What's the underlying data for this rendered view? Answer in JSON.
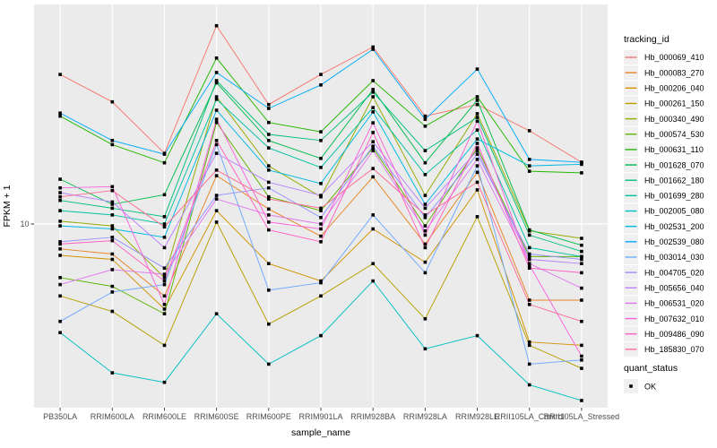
{
  "chart_data": {
    "type": "line",
    "title": "",
    "xlabel": "sample_name",
    "ylabel": "FPKM + 1",
    "y_scale": "log10",
    "ylim": [
      1.45,
      100
    ],
    "y_ticks": [
      10
    ],
    "y_tick_labels": [
      "10"
    ],
    "grid": "major-white-on-gray",
    "legend_position": "right",
    "point_shape": "filled-square",
    "point_color": "#000000",
    "categories": [
      "PB350LA",
      "RRIM600LA",
      "RRIM600LE",
      "RRIM600SE",
      "RRIM600PE",
      "RRIM901LA",
      "RRIM928BA",
      "RRIM928LA",
      "RRIM928LE",
      "RRII105LA_Control",
      "RRII105LA_Stressed"
    ],
    "series": [
      {
        "name": "Hb_000069_410",
        "color": "#F8766D",
        "values": [
          48,
          36,
          21,
          80,
          35,
          48,
          64,
          31,
          35,
          26.6,
          19.1
        ]
      },
      {
        "name": "Hb_000083_270",
        "color": "#E88526",
        "values": [
          7.7,
          7.3,
          4.7,
          16.6,
          11.7,
          8.8,
          16.4,
          8.1,
          17.2,
          4.5,
          4.5
        ]
      },
      {
        "name": "Hb_000206_040",
        "color": "#D39200",
        "values": [
          7.2,
          6.9,
          4.1,
          11.5,
          6.6,
          5.5,
          9.5,
          6.7,
          14.3,
          2.9,
          2.8
        ]
      },
      {
        "name": "Hb_000261_150",
        "color": "#B79F00",
        "values": [
          4.7,
          4.0,
          2.8,
          10.2,
          3.5,
          4.7,
          6.6,
          3.7,
          10.8,
          2.8,
          2.2
        ]
      },
      {
        "name": "Hb_000340_490",
        "color": "#93AA00",
        "values": [
          10.3,
          9.8,
          5.7,
          38,
          18.4,
          13.3,
          38,
          13.5,
          31.8,
          9.3,
          8.6
        ]
      },
      {
        "name": "Hb_000574_530",
        "color": "#5EB300",
        "values": [
          5.7,
          5.2,
          3.9,
          29,
          13.3,
          11.5,
          22.2,
          9.8,
          22.2,
          7.1,
          7.1
        ]
      },
      {
        "name": "Hb_000631_110",
        "color": "#24B700",
        "values": [
          31,
          23,
          19,
          57,
          29,
          26.3,
          45,
          27.9,
          38,
          17.4,
          17.1
        ]
      },
      {
        "name": "Hb_001628_070",
        "color": "#00BB4E",
        "values": [
          16,
          12.3,
          13.6,
          44,
          24,
          19.9,
          41,
          19,
          36.6,
          9.4,
          8.0
        ]
      },
      {
        "name": "Hb_001662_180",
        "color": "#00C079",
        "values": [
          12.8,
          11.8,
          10.8,
          45,
          25.6,
          24,
          39.9,
          21.6,
          30.6,
          8.9,
          7.5
        ]
      },
      {
        "name": "Hb_001699_280",
        "color": "#00C1A3",
        "values": [
          11.5,
          11,
          10,
          37,
          22.2,
          18.1,
          33.9,
          16.8,
          26.8,
          7.8,
          7.1
        ]
      },
      {
        "name": "Hb_002005_080",
        "color": "#00BFC4",
        "values": [
          3.2,
          2.1,
          1.9,
          3.9,
          2.3,
          3.1,
          5.5,
          2.7,
          3.1,
          1.85,
          1.57
        ]
      },
      {
        "name": "Hb_002531_200",
        "color": "#00B9E3",
        "values": [
          9.8,
          9.5,
          8.7,
          33,
          17.6,
          15.3,
          32.4,
          12.3,
          24.4,
          18.4,
          18.7
        ]
      },
      {
        "name": "Hb_002539_080",
        "color": "#00ACFC",
        "values": [
          32,
          24,
          20.8,
          49,
          33.6,
          43,
          62.5,
          30,
          50.8,
          19.7,
          19.1
        ]
      },
      {
        "name": "Hb_003014_030",
        "color": "#6FA9FF",
        "values": [
          3.6,
          4.9,
          5.3,
          23,
          5.0,
          5.4,
          11,
          6.0,
          18.4,
          2.3,
          2.4
        ]
      },
      {
        "name": "Hb_004705_020",
        "color": "#9590FF",
        "values": [
          8.3,
          8.7,
          6.3,
          13.5,
          14.6,
          10.7,
          22.6,
          10.7,
          20.8,
          7.3,
          6.9
        ]
      },
      {
        "name": "Hb_005656_040",
        "color": "#BC81FF",
        "values": [
          13.9,
          12.6,
          7.8,
          21,
          15.5,
          13.5,
          23.7,
          11.8,
          21.6,
          6.9,
          6.6
        ]
      },
      {
        "name": "Hb_006531_020",
        "color": "#E278F0",
        "values": [
          5.3,
          6.2,
          5.9,
          13,
          11,
          10,
          21.6,
          9.3,
          19.7,
          6.6,
          5.1
        ]
      },
      {
        "name": "Hb_007632_010",
        "color": "#FA62DB",
        "values": [
          14.6,
          14.8,
          4.3,
          30,
          10.2,
          9.5,
          28.9,
          8.9,
          29.4,
          6.5,
          2.5
        ]
      },
      {
        "name": "Hb_009486_090",
        "color": "#FF61C2",
        "values": [
          8.1,
          8.4,
          5.5,
          24,
          9.4,
          8.3,
          26.1,
          7.8,
          23.3,
          6.3,
          6.0
        ]
      },
      {
        "name": "Hb_185830_070",
        "color": "#FF6B94",
        "values": [
          13.3,
          14.2,
          9.7,
          17.6,
          13,
          11.8,
          17.9,
          11,
          15.5,
          4.3,
          3.6
        ]
      }
    ],
    "legend": {
      "color_title": "tracking_id",
      "shape_title": "quant_status",
      "shape_items": [
        {
          "label": "OK"
        }
      ]
    }
  },
  "style": {
    "panel_bg": "#EBEBEB",
    "grid_color": "#FFFFFF",
    "tick_color": "#333333",
    "tick_label_color": "#4D4D4D",
    "axis_title_color": "#000000",
    "legend_key_bg": "#F0F0F0",
    "page_bg": "#FFFFFF"
  }
}
